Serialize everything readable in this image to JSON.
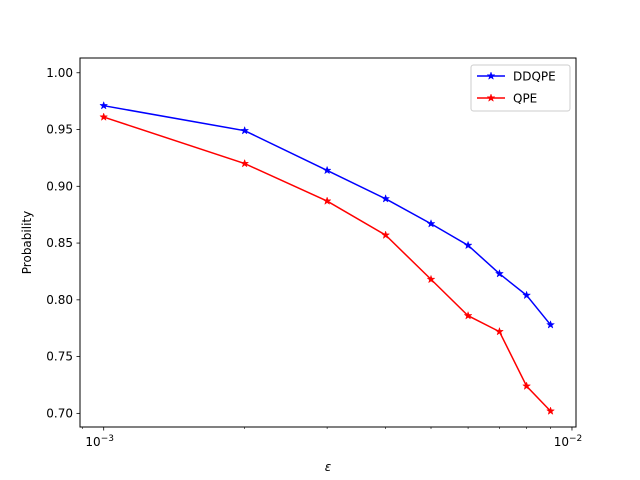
{
  "chart_data": {
    "type": "line",
    "title": "",
    "xlabel": "ε",
    "ylabel": "Probability",
    "xscale": "log",
    "xlim": [
      0.00089,
      0.0102
    ],
    "ylim": [
      0.688,
      1.013
    ],
    "grid": false,
    "legend_position": "top-right",
    "x": [
      0.001,
      0.002,
      0.003,
      0.004,
      0.005,
      0.006,
      0.007,
      0.008,
      0.009
    ],
    "series": [
      {
        "name": "DDQPE",
        "color": "#0000ff",
        "marker": "star",
        "values": [
          0.971,
          0.949,
          0.914,
          0.889,
          0.867,
          0.848,
          0.823,
          0.804,
          0.778
        ]
      },
      {
        "name": "QPE",
        "color": "#ff0000",
        "marker": "star",
        "values": [
          0.961,
          0.92,
          0.887,
          0.857,
          0.818,
          0.786,
          0.772,
          0.724,
          0.702
        ]
      }
    ],
    "y_ticks": [
      "0.70",
      "0.75",
      "0.80",
      "0.85",
      "0.90",
      "0.95",
      "1.00"
    ],
    "y_tick_values": [
      0.7,
      0.75,
      0.8,
      0.85,
      0.9,
      0.95,
      1.0
    ],
    "x_tick_base": "10",
    "x_tick_exponents": [
      "−3",
      "−2"
    ],
    "x_tick_values": [
      0.001,
      0.01
    ]
  }
}
